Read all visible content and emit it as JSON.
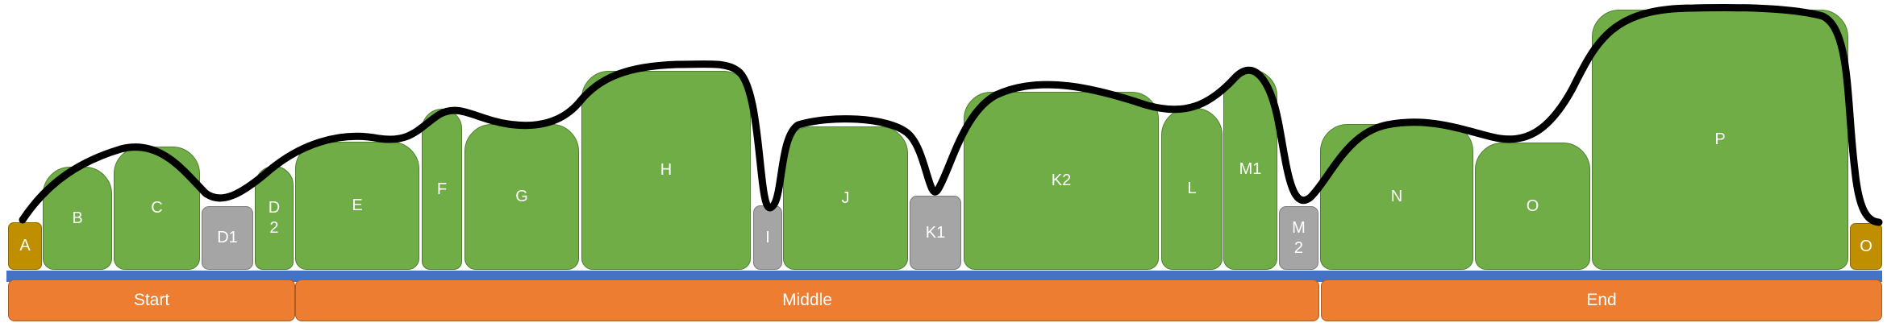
{
  "blocks": [
    {
      "id": "A",
      "label": "A",
      "type": "gold"
    },
    {
      "id": "B",
      "label": "B",
      "type": "green"
    },
    {
      "id": "C",
      "label": "C",
      "type": "green"
    },
    {
      "id": "D1",
      "label": "D1",
      "type": "gray"
    },
    {
      "id": "D2",
      "label": "D\n2",
      "type": "green"
    },
    {
      "id": "E",
      "label": "E",
      "type": "green"
    },
    {
      "id": "F",
      "label": "F",
      "type": "green"
    },
    {
      "id": "G",
      "label": "G",
      "type": "green"
    },
    {
      "id": "H",
      "label": "H",
      "type": "green"
    },
    {
      "id": "I",
      "label": "I",
      "type": "gray"
    },
    {
      "id": "J",
      "label": "J",
      "type": "green"
    },
    {
      "id": "K1",
      "label": "K1",
      "type": "gray"
    },
    {
      "id": "K2",
      "label": "K2",
      "type": "green"
    },
    {
      "id": "L",
      "label": "L",
      "type": "green"
    },
    {
      "id": "M1",
      "label": "M1",
      "type": "green"
    },
    {
      "id": "M2",
      "label": "M\n2",
      "type": "gray"
    },
    {
      "id": "N",
      "label": "N",
      "type": "green"
    },
    {
      "id": "O1",
      "label": "O",
      "type": "green"
    },
    {
      "id": "P",
      "label": "P",
      "type": "green"
    },
    {
      "id": "O2",
      "label": "O",
      "type": "gold"
    }
  ],
  "sections": [
    {
      "id": "start",
      "label": "Start"
    },
    {
      "id": "middle",
      "label": "Middle"
    },
    {
      "id": "end",
      "label": "End"
    }
  ],
  "colors": {
    "green": "#70ad47",
    "gray": "#a5a5a5",
    "gold": "#bf8f00",
    "orange": "#ed7d31",
    "blue_bar": "#4472c4",
    "curve": "#000000"
  }
}
